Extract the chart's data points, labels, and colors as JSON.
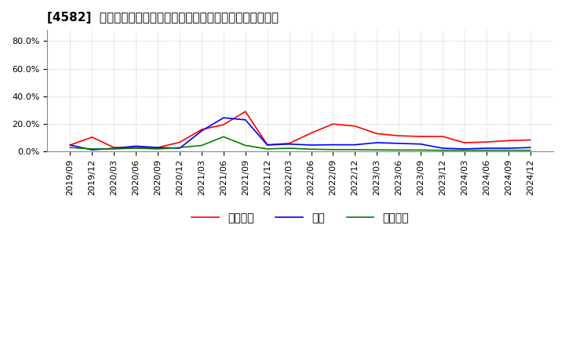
{
  "title": "[4582]  売上債権、在庫、買入債務の総資産に対する比率の推移",
  "ylim": [
    0.0,
    0.88
  ],
  "yticks": [
    0.0,
    0.2,
    0.4,
    0.6,
    0.8
  ],
  "ytick_labels": [
    "0.0%",
    "20.0%",
    "40.0%",
    "60.0%",
    "80.0%"
  ],
  "dates": [
    "2019/09",
    "2019/12",
    "2020/03",
    "2020/06",
    "2020/09",
    "2020/12",
    "2021/03",
    "2021/06",
    "2021/09",
    "2021/12",
    "2022/03",
    "2022/06",
    "2022/09",
    "2022/12",
    "2023/03",
    "2023/06",
    "2023/09",
    "2023/12",
    "2024/03",
    "2024/06",
    "2024/09",
    "2024/12"
  ],
  "urikake": [
    0.048,
    0.105,
    0.03,
    0.03,
    0.03,
    0.068,
    0.16,
    0.195,
    0.29,
    0.05,
    0.06,
    0.135,
    0.2,
    0.185,
    0.13,
    0.115,
    0.11,
    0.11,
    0.065,
    0.07,
    0.08,
    0.085
  ],
  "zaiko": [
    0.048,
    0.013,
    0.025,
    0.04,
    0.03,
    0.025,
    0.15,
    0.245,
    0.23,
    0.048,
    0.055,
    0.048,
    0.05,
    0.05,
    0.065,
    0.06,
    0.055,
    0.025,
    0.02,
    0.025,
    0.025,
    0.03
  ],
  "kaiire": [
    0.03,
    0.02,
    0.02,
    0.025,
    0.02,
    0.03,
    0.045,
    0.108,
    0.045,
    0.02,
    0.025,
    0.018,
    0.015,
    0.015,
    0.013,
    0.012,
    0.012,
    0.01,
    0.01,
    0.01,
    0.01,
    0.01
  ],
  "urikake_color": "#ff0000",
  "zaiko_color": "#0000ff",
  "kaiire_color": "#008000",
  "background_color": "#ffffff",
  "grid_color": "#aaaaaa",
  "legend_labels": [
    "売上債権",
    "在庫",
    "買入債務"
  ],
  "title_fontsize": 11,
  "tick_fontsize": 8
}
